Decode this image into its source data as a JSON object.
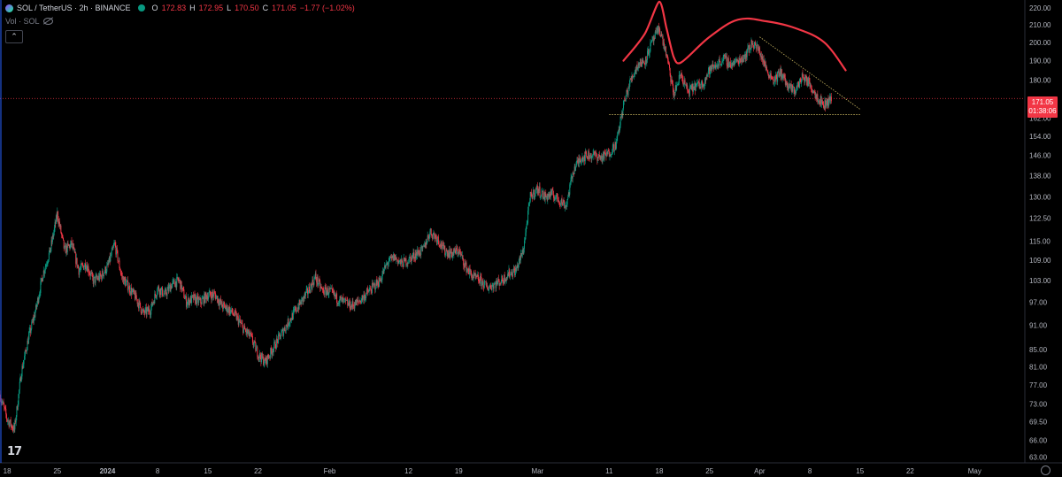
{
  "header": {
    "symbol": "SOL / TetherUS · 2h · BINANCE",
    "open_label": "O",
    "open": "172.83",
    "high_label": "H",
    "high": "172.95",
    "low_label": "L",
    "low": "170.50",
    "close_label": "C",
    "close": "171.05",
    "change": "−1.77 (−1.02%)",
    "volume_label": "Vol · SOL",
    "collapse_glyph": "⌃"
  },
  "price_tag": {
    "price": "171.05",
    "countdown": "01:38:06"
  },
  "logo_text": "17",
  "colors": {
    "up": "#089981",
    "down": "#f23645",
    "drawing": "#f23645",
    "trendline": "#c8b560",
    "background": "#000000"
  },
  "chart_data": {
    "type": "candlestick",
    "title": "",
    "y_scale": "log",
    "ylim": [
      62,
      225
    ],
    "price_axis_labels": [
      "220.00",
      "210.00",
      "200.00",
      "190.00",
      "180.00",
      "171.05",
      "162.00",
      "154.00",
      "146.00",
      "138.00",
      "130.00",
      "122.50",
      "115.00",
      "109.00",
      "103.00",
      "97.00",
      "91.00",
      "85.00",
      "81.00",
      "77.00",
      "73.00",
      "69.50",
      "66.00",
      "63.00"
    ],
    "time_axis_labels": [
      "18",
      "25",
      "2024",
      "8",
      "15",
      "22",
      "Feb",
      "12",
      "19",
      "Mar",
      "11",
      "18",
      "25",
      "Apr",
      "8",
      "15",
      "22",
      "May"
    ],
    "time_axis_dates": [
      "2023-12-18",
      "2023-12-25",
      "2024-01-01",
      "2024-01-08",
      "2024-01-15",
      "2024-01-22",
      "2024-02-01",
      "2024-02-12",
      "2024-02-19",
      "2024-03-01",
      "2024-03-11",
      "2024-03-18",
      "2024-03-25",
      "2024-04-01",
      "2024-04-08",
      "2024-04-15",
      "2024-04-22",
      "2024-05-01"
    ],
    "x_range": [
      "2023-12-17",
      "2024-05-08"
    ],
    "last_close": 171.05,
    "price_path": [
      [
        "2023-12-17",
        75
      ],
      [
        "2023-12-18",
        70
      ],
      [
        "2023-12-19",
        68
      ],
      [
        "2023-12-20",
        80
      ],
      [
        "2023-12-21",
        88
      ],
      [
        "2023-12-22",
        95
      ],
      [
        "2023-12-23",
        105
      ],
      [
        "2023-12-24",
        112
      ],
      [
        "2023-12-25",
        124
      ],
      [
        "2023-12-26",
        112
      ],
      [
        "2023-12-27",
        114
      ],
      [
        "2023-12-28",
        106
      ],
      [
        "2023-12-29",
        108
      ],
      [
        "2023-12-30",
        103
      ],
      [
        "2023-12-31",
        104
      ],
      [
        "2024-01-01",
        107
      ],
      [
        "2024-01-02",
        114
      ],
      [
        "2024-01-03",
        104
      ],
      [
        "2024-01-04",
        101
      ],
      [
        "2024-01-05",
        98
      ],
      [
        "2024-01-06",
        94
      ],
      [
        "2024-01-07",
        95
      ],
      [
        "2024-01-08",
        101
      ],
      [
        "2024-01-09",
        99
      ],
      [
        "2024-01-10",
        102
      ],
      [
        "2024-01-11",
        103
      ],
      [
        "2024-01-12",
        97
      ],
      [
        "2024-01-13",
        98
      ],
      [
        "2024-01-14",
        97
      ],
      [
        "2024-01-15",
        99
      ],
      [
        "2024-01-16",
        99
      ],
      [
        "2024-01-17",
        96
      ],
      [
        "2024-01-18",
        95
      ],
      [
        "2024-01-19",
        93
      ],
      [
        "2024-01-20",
        90
      ],
      [
        "2024-01-21",
        88
      ],
      [
        "2024-01-22",
        84
      ],
      [
        "2024-01-23",
        82
      ],
      [
        "2024-01-24",
        85
      ],
      [
        "2024-01-25",
        88
      ],
      [
        "2024-01-26",
        91
      ],
      [
        "2024-01-27",
        94
      ],
      [
        "2024-01-28",
        97
      ],
      [
        "2024-01-29",
        100
      ],
      [
        "2024-01-30",
        104
      ],
      [
        "2024-01-31",
        100
      ],
      [
        "2024-02-01",
        100
      ],
      [
        "2024-02-02",
        98
      ],
      [
        "2024-02-03",
        97
      ],
      [
        "2024-02-04",
        96
      ],
      [
        "2024-02-05",
        97
      ],
      [
        "2024-02-06",
        99
      ],
      [
        "2024-02-07",
        101
      ],
      [
        "2024-02-08",
        103
      ],
      [
        "2024-02-09",
        108
      ],
      [
        "2024-02-10",
        110
      ],
      [
        "2024-02-11",
        108
      ],
      [
        "2024-02-12",
        109
      ],
      [
        "2024-02-13",
        111
      ],
      [
        "2024-02-14",
        112
      ],
      [
        "2024-02-15",
        118
      ],
      [
        "2024-02-16",
        116
      ],
      [
        "2024-02-17",
        112
      ],
      [
        "2024-02-18",
        111
      ],
      [
        "2024-02-19",
        112
      ],
      [
        "2024-02-20",
        107
      ],
      [
        "2024-02-21",
        104
      ],
      [
        "2024-02-22",
        103
      ],
      [
        "2024-02-23",
        101
      ],
      [
        "2024-02-24",
        102
      ],
      [
        "2024-02-25",
        103
      ],
      [
        "2024-02-26",
        105
      ],
      [
        "2024-02-27",
        106
      ],
      [
        "2024-02-28",
        112
      ],
      [
        "2024-02-29",
        130
      ],
      [
        "2024-03-01",
        133
      ],
      [
        "2024-03-02",
        130
      ],
      [
        "2024-03-03",
        131
      ],
      [
        "2024-03-04",
        129
      ],
      [
        "2024-03-05",
        127
      ],
      [
        "2024-03-06",
        140
      ],
      [
        "2024-03-07",
        145
      ],
      [
        "2024-03-08",
        146
      ],
      [
        "2024-03-09",
        146
      ],
      [
        "2024-03-10",
        145
      ],
      [
        "2024-03-11",
        147
      ],
      [
        "2024-03-12",
        151
      ],
      [
        "2024-03-13",
        168
      ],
      [
        "2024-03-14",
        180
      ],
      [
        "2024-03-15",
        188
      ],
      [
        "2024-03-16",
        190
      ],
      [
        "2024-03-17",
        200
      ],
      [
        "2024-03-18",
        208
      ],
      [
        "2024-03-19",
        193
      ],
      [
        "2024-03-20",
        173
      ],
      [
        "2024-03-21",
        183
      ],
      [
        "2024-03-22",
        174
      ],
      [
        "2024-03-23",
        177
      ],
      [
        "2024-03-24",
        178
      ],
      [
        "2024-03-25",
        185
      ],
      [
        "2024-03-26",
        188
      ],
      [
        "2024-03-27",
        191
      ],
      [
        "2024-03-28",
        188
      ],
      [
        "2024-03-29",
        190
      ],
      [
        "2024-03-30",
        193
      ],
      [
        "2024-03-31",
        200
      ],
      [
        "2024-04-01",
        195
      ],
      [
        "2024-04-02",
        185
      ],
      [
        "2024-04-03",
        180
      ],
      [
        "2024-04-04",
        184
      ],
      [
        "2024-04-05",
        176
      ],
      [
        "2024-04-06",
        175
      ],
      [
        "2024-04-07",
        182
      ],
      [
        "2024-04-08",
        178
      ],
      [
        "2024-04-09",
        172
      ],
      [
        "2024-04-10",
        168
      ],
      [
        "2024-04-11",
        171.05
      ]
    ],
    "annotations": {
      "head_and_shoulders_arc": [
        [
          "2024-03-13",
          190
        ],
        [
          "2024-03-16",
          205
        ],
        [
          "2024-03-18",
          224
        ],
        [
          "2024-03-19",
          208
        ],
        [
          "2024-03-20",
          192
        ],
        [
          "2024-03-21",
          189
        ],
        [
          "2024-03-25",
          203
        ],
        [
          "2024-03-29",
          213
        ],
        [
          "2024-04-02",
          212
        ],
        [
          "2024-04-06",
          208
        ],
        [
          "2024-04-10",
          200
        ],
        [
          "2024-04-13",
          185
        ]
      ],
      "descending_trendline": [
        [
          "2024-04-01",
          203
        ],
        [
          "2024-04-15",
          166
        ]
      ],
      "neckline_support": {
        "price": 163.5,
        "from": "2024-03-11",
        "to": "2024-04-15"
      },
      "current_price_line": 171.05
    }
  }
}
